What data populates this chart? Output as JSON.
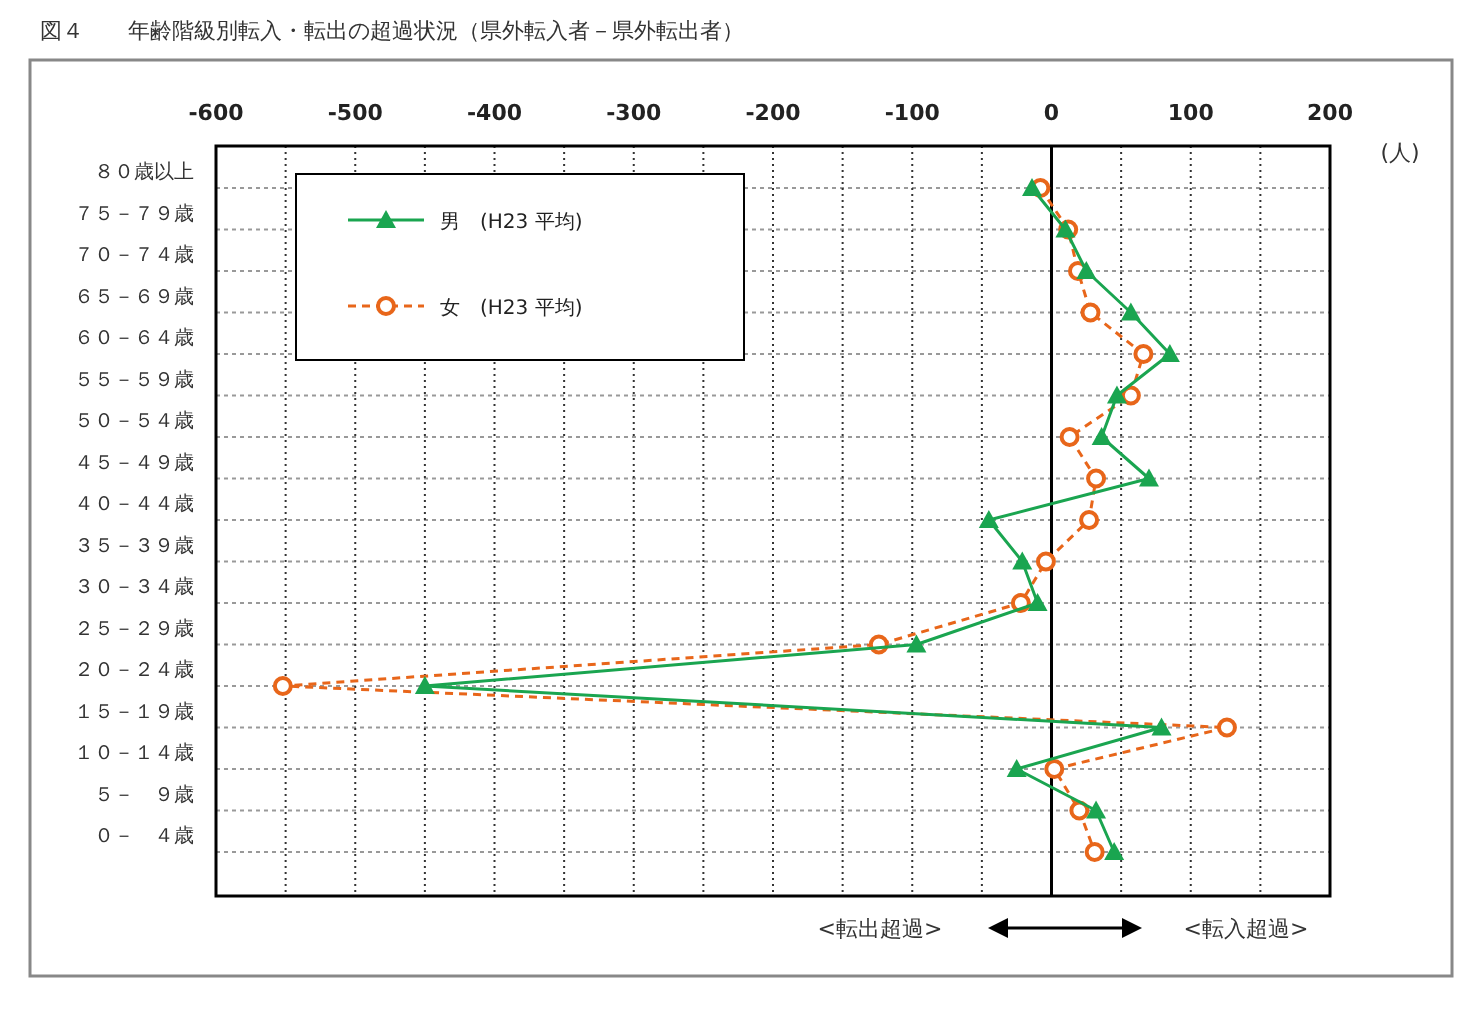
{
  "chart_data": {
    "type": "line",
    "title": "図４　　年齢階級別転入・転出の超過状況（県外転入者－県外転出者）",
    "orientation": "horizontal",
    "categories": [
      "８０歳以上",
      "７５－７９歳",
      "７０－７４歳",
      "６５－６９歳",
      "６０－６４歳",
      "５５－５９歳",
      "５０－５４歳",
      "４５－４９歳",
      "４０－４４歳",
      "３５－３９歳",
      "３０－３４歳",
      "２５－２９歳",
      "２０－２４歳",
      "１５－１９歳",
      "１０－１４歳",
      "５－　９歳",
      "０－　４歳"
    ],
    "series": [
      {
        "name": "男　(H23 平均)",
        "color": "#1aa550",
        "marker": "triangle",
        "line_style": "solid",
        "values": [
          -14,
          10,
          25,
          57,
          85,
          47,
          36,
          70,
          -45,
          -21,
          -10,
          -97,
          -450,
          79,
          -25,
          32,
          45
        ]
      },
      {
        "name": "女　(H23 平均)",
        "color": "#e8661a",
        "marker": "circle",
        "line_style": "dashed",
        "values": [
          -8,
          12,
          19,
          28,
          66,
          57,
          13,
          32,
          27,
          -4,
          -22,
          -124,
          -552,
          126,
          2,
          20,
          31
        ]
      }
    ],
    "xlim": [
      -600,
      200
    ],
    "xticks": [
      -600,
      {
        "value": -550,
        "label": null
      },
      -500,
      {
        "value": -450,
        "label": null
      },
      -400,
      {
        "value": -350,
        "label": null
      },
      -300,
      {
        "value": -250,
        "label": null
      },
      -200,
      {
        "value": -150,
        "label": null
      },
      -100,
      {
        "value": -50,
        "label": null
      },
      0,
      {
        "value": 50,
        "label": null
      },
      100,
      {
        "value": 150,
        "label": null
      },
      200
    ],
    "grid": true,
    "legend": "top left",
    "ref_lines": [
      {
        "axis": "x",
        "value": 0,
        "color": "#000000"
      }
    ],
    "annotations": [
      "(人)",
      "<転出超過>",
      "<転入超過>"
    ]
  }
}
